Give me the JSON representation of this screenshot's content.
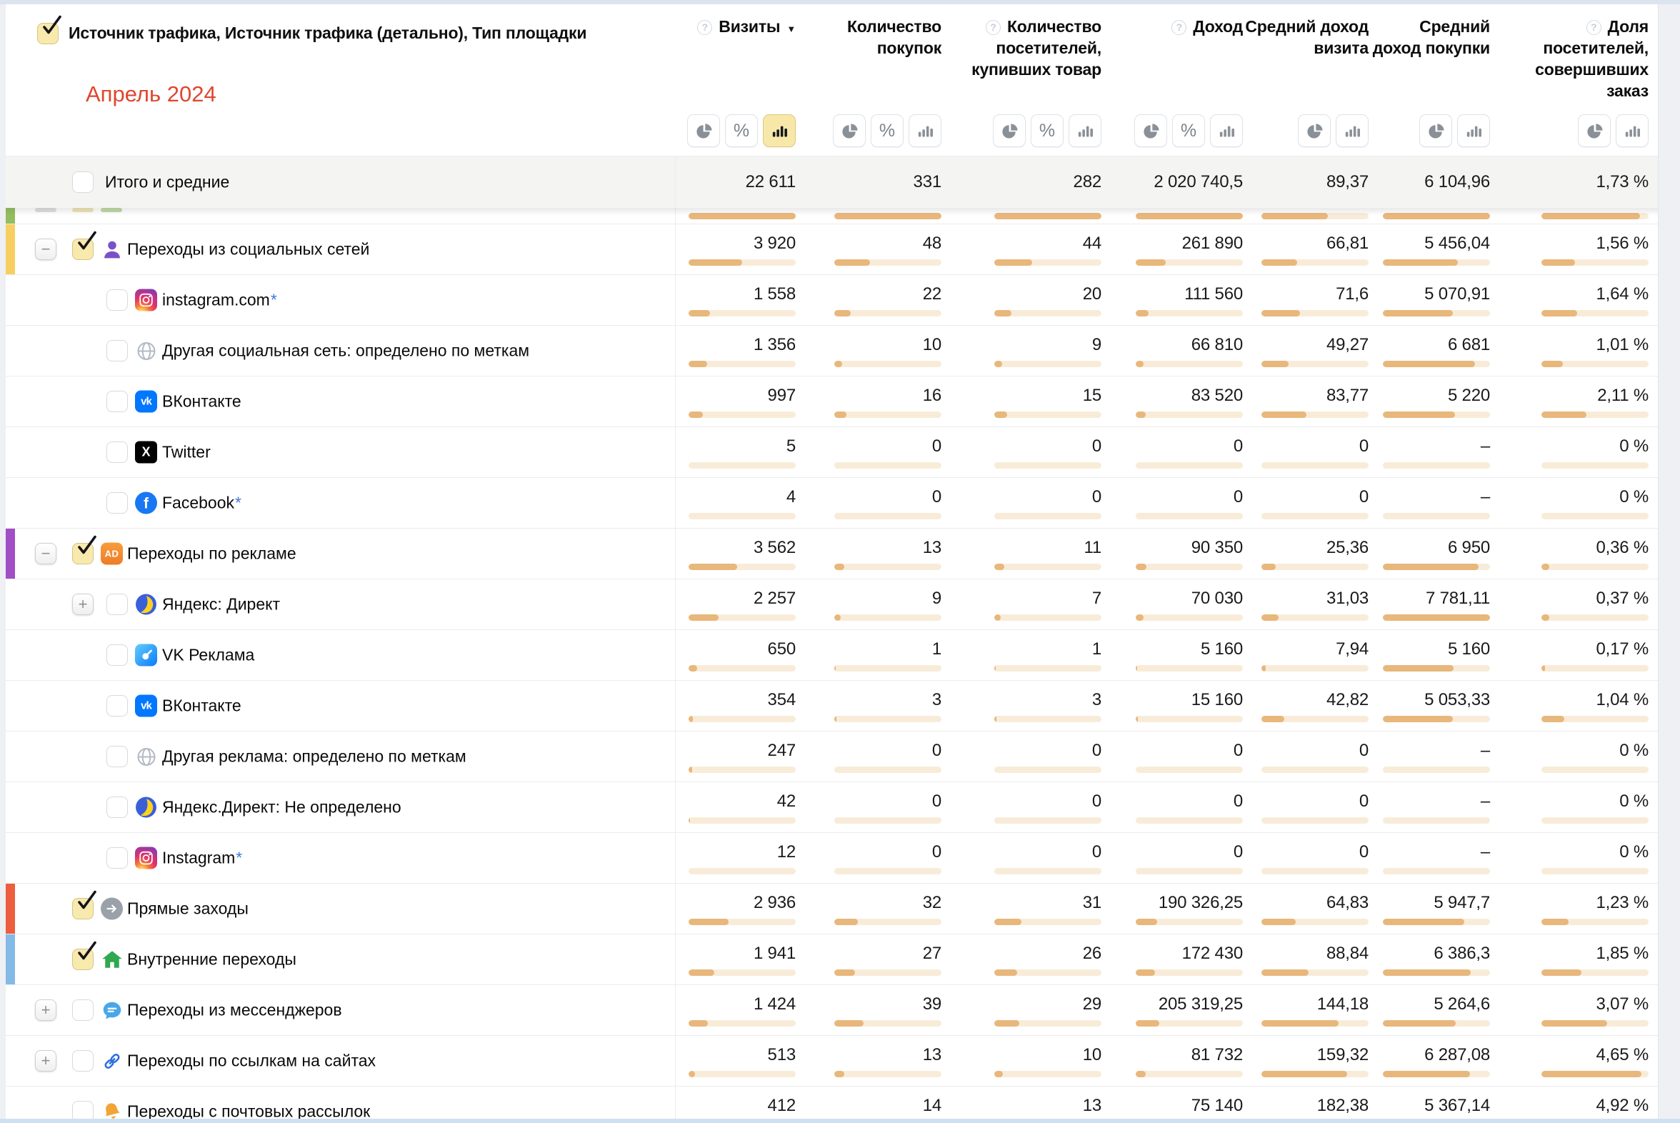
{
  "header": {
    "dimension_title": "Источник трафика, Источник трафика (детально), Тип площадки",
    "period_label": "Апрель 2024",
    "select_all_checked": true,
    "columns": [
      {
        "label": "Визиты",
        "help": true,
        "sort": "desc",
        "toggles": [
          "pie",
          "percent",
          "bars"
        ],
        "active": "bars"
      },
      {
        "label": "Количество покупок",
        "help": false,
        "sort": null,
        "toggles": [
          "pie",
          "percent",
          "bars"
        ],
        "active": null
      },
      {
        "label": "Количество посетителей, купивших товар",
        "help": true,
        "sort": null,
        "toggles": [
          "pie",
          "percent",
          "bars"
        ],
        "active": null
      },
      {
        "label": "Доход",
        "help": true,
        "sort": null,
        "toggles": [
          "pie",
          "percent",
          "bars"
        ],
        "active": null
      },
      {
        "label": "Средний доход визита",
        "help": false,
        "sort": null,
        "toggles": [
          "pie",
          "bars"
        ],
        "active": null
      },
      {
        "label": "Средний доход покупки",
        "help": false,
        "sort": null,
        "toggles": [
          "pie",
          "bars"
        ],
        "active": null
      },
      {
        "label": "Доля посетителей, совершивших заказ",
        "help": true,
        "sort": null,
        "toggles": [
          "pie",
          "bars"
        ],
        "active": null
      }
    ]
  },
  "totals": {
    "label": "Итого и средние",
    "checked": false,
    "values": [
      "22 611",
      "331",
      "282",
      "2 020 740,5",
      "89,37",
      "6 104,96",
      "1,73 %"
    ]
  },
  "clipped_row": {
    "stripe": "#94bd5e",
    "fills": [
      1,
      1,
      1,
      1,
      0.62,
      1,
      0.92
    ]
  },
  "rows": [
    {
      "name": "social-networks",
      "level": 0,
      "stripe": "#f6cf60",
      "expander": "minus",
      "checked": true,
      "icon": "social-person",
      "label": "Переходы из социальных сетей",
      "asterisk": false,
      "cells": [
        {
          "v": "3 920",
          "f": 0.5
        },
        {
          "v": "48",
          "f": 0.33
        },
        {
          "v": "44",
          "f": 0.35
        },
        {
          "v": "261 890",
          "f": 0.28
        },
        {
          "v": "66,81",
          "f": 0.33
        },
        {
          "v": "5 456,04",
          "f": 0.7
        },
        {
          "v": "1,56 %",
          "f": 0.31
        }
      ]
    },
    {
      "name": "instagram-com",
      "level": 1,
      "stripe": null,
      "expander": null,
      "checked": false,
      "icon": "instagram",
      "label": "instagram.com",
      "asterisk": true,
      "cells": [
        {
          "v": "1 558",
          "f": 0.2
        },
        {
          "v": "22",
          "f": 0.15
        },
        {
          "v": "20",
          "f": 0.16
        },
        {
          "v": "111 560",
          "f": 0.12
        },
        {
          "v": "71,6",
          "f": 0.36
        },
        {
          "v": "5 070,91",
          "f": 0.65
        },
        {
          "v": "1,64 %",
          "f": 0.33
        }
      ]
    },
    {
      "name": "other-social",
      "level": 1,
      "stripe": null,
      "expander": null,
      "checked": false,
      "icon": "globe",
      "label": "Другая социальная сеть: определено по меткам",
      "asterisk": false,
      "cells": [
        {
          "v": "1 356",
          "f": 0.17
        },
        {
          "v": "10",
          "f": 0.07
        },
        {
          "v": "9",
          "f": 0.07
        },
        {
          "v": "66 810",
          "f": 0.07
        },
        {
          "v": "49,27",
          "f": 0.25
        },
        {
          "v": "6 681",
          "f": 0.86
        },
        {
          "v": "1,01 %",
          "f": 0.2
        }
      ]
    },
    {
      "name": "vkontakte-social",
      "level": 1,
      "stripe": null,
      "expander": null,
      "checked": false,
      "icon": "vk",
      "label": "ВКонтакте",
      "asterisk": false,
      "cells": [
        {
          "v": "997",
          "f": 0.13
        },
        {
          "v": "16",
          "f": 0.11
        },
        {
          "v": "15",
          "f": 0.12
        },
        {
          "v": "83 520",
          "f": 0.09
        },
        {
          "v": "83,77",
          "f": 0.42
        },
        {
          "v": "5 220",
          "f": 0.67
        },
        {
          "v": "2,11 %",
          "f": 0.42
        }
      ]
    },
    {
      "name": "twitter",
      "level": 1,
      "stripe": null,
      "expander": null,
      "checked": false,
      "icon": "x",
      "label": "Twitter",
      "asterisk": false,
      "cells": [
        {
          "v": "5",
          "f": 0
        },
        {
          "v": "0",
          "f": 0
        },
        {
          "v": "0",
          "f": 0
        },
        {
          "v": "0",
          "f": 0
        },
        {
          "v": "0",
          "f": 0
        },
        {
          "v": "–",
          "f": 0
        },
        {
          "v": "0 %",
          "f": 0
        }
      ]
    },
    {
      "name": "facebook",
      "level": 1,
      "stripe": null,
      "expander": null,
      "checked": false,
      "icon": "facebook",
      "label": "Facebook",
      "asterisk": true,
      "cells": [
        {
          "v": "4",
          "f": 0
        },
        {
          "v": "0",
          "f": 0
        },
        {
          "v": "0",
          "f": 0
        },
        {
          "v": "0",
          "f": 0
        },
        {
          "v": "0",
          "f": 0
        },
        {
          "v": "–",
          "f": 0
        },
        {
          "v": "0 %",
          "f": 0
        }
      ]
    },
    {
      "name": "ad-traffic",
      "level": 0,
      "stripe": "#a14fc5",
      "expander": "minus",
      "checked": true,
      "icon": "ad",
      "label": "Переходы по рекламе",
      "asterisk": false,
      "cells": [
        {
          "v": "3 562",
          "f": 0.45
        },
        {
          "v": "13",
          "f": 0.09
        },
        {
          "v": "11",
          "f": 0.09
        },
        {
          "v": "90 350",
          "f": 0.1
        },
        {
          "v": "25,36",
          "f": 0.13
        },
        {
          "v": "6 950",
          "f": 0.89
        },
        {
          "v": "0,36 %",
          "f": 0.07
        }
      ]
    },
    {
      "name": "yandex-direct",
      "level": 1,
      "stripe": null,
      "expander": "plus",
      "checked": false,
      "icon": "yandex",
      "label": "Яндекс: Директ",
      "asterisk": false,
      "cells": [
        {
          "v": "2 257",
          "f": 0.28
        },
        {
          "v": "9",
          "f": 0.06
        },
        {
          "v": "7",
          "f": 0.06
        },
        {
          "v": "70 030",
          "f": 0.07
        },
        {
          "v": "31,03",
          "f": 0.16
        },
        {
          "v": "7 781,11",
          "f": 1
        },
        {
          "v": "0,37 %",
          "f": 0.07
        }
      ]
    },
    {
      "name": "vk-ads",
      "level": 1,
      "stripe": null,
      "expander": null,
      "checked": false,
      "icon": "vk-ads",
      "label": "VK Реклама",
      "asterisk": false,
      "cells": [
        {
          "v": "650",
          "f": 0.08
        },
        {
          "v": "1",
          "f": 0.01
        },
        {
          "v": "1",
          "f": 0.01
        },
        {
          "v": "5 160",
          "f": 0.01
        },
        {
          "v": "7,94",
          "f": 0.04
        },
        {
          "v": "5 160",
          "f": 0.66
        },
        {
          "v": "0,17 %",
          "f": 0.03
        }
      ]
    },
    {
      "name": "vkontakte-ads",
      "level": 1,
      "stripe": null,
      "expander": null,
      "checked": false,
      "icon": "vk",
      "label": "ВКонтакте",
      "asterisk": false,
      "cells": [
        {
          "v": "354",
          "f": 0.04
        },
        {
          "v": "3",
          "f": 0.02
        },
        {
          "v": "3",
          "f": 0.02
        },
        {
          "v": "15 160",
          "f": 0.02
        },
        {
          "v": "42,82",
          "f": 0.21
        },
        {
          "v": "5 053,33",
          "f": 0.65
        },
        {
          "v": "1,04 %",
          "f": 0.21
        }
      ]
    },
    {
      "name": "other-ads",
      "level": 1,
      "stripe": null,
      "expander": null,
      "checked": false,
      "icon": "globe",
      "label": "Другая реклама: определено по меткам",
      "asterisk": false,
      "cells": [
        {
          "v": "247",
          "f": 0.03
        },
        {
          "v": "0",
          "f": 0
        },
        {
          "v": "0",
          "f": 0
        },
        {
          "v": "0",
          "f": 0
        },
        {
          "v": "0",
          "f": 0
        },
        {
          "v": "–",
          "f": 0
        },
        {
          "v": "0 %",
          "f": 0
        }
      ]
    },
    {
      "name": "yandex-direct-undefined",
      "level": 1,
      "stripe": null,
      "expander": null,
      "checked": false,
      "icon": "yandex",
      "label": "Яндекс.Директ: Не определено",
      "asterisk": false,
      "cells": [
        {
          "v": "42",
          "f": 0.01
        },
        {
          "v": "0",
          "f": 0
        },
        {
          "v": "0",
          "f": 0
        },
        {
          "v": "0",
          "f": 0
        },
        {
          "v": "0",
          "f": 0
        },
        {
          "v": "–",
          "f": 0
        },
        {
          "v": "0 %",
          "f": 0
        }
      ]
    },
    {
      "name": "instagram-ads",
      "level": 1,
      "stripe": null,
      "expander": null,
      "checked": false,
      "icon": "instagram",
      "label": "Instagram",
      "asterisk": true,
      "cells": [
        {
          "v": "12",
          "f": 0
        },
        {
          "v": "0",
          "f": 0
        },
        {
          "v": "0",
          "f": 0
        },
        {
          "v": "0",
          "f": 0
        },
        {
          "v": "0",
          "f": 0
        },
        {
          "v": "–",
          "f": 0
        },
        {
          "v": "0 %",
          "f": 0
        }
      ]
    },
    {
      "name": "direct-visits",
      "level": 0,
      "stripe": "#ec5e3f",
      "expander": null,
      "checked": true,
      "icon": "arrow",
      "label": "Прямые заходы",
      "asterisk": false,
      "cells": [
        {
          "v": "2 936",
          "f": 0.37
        },
        {
          "v": "32",
          "f": 0.22
        },
        {
          "v": "31",
          "f": 0.25
        },
        {
          "v": "190 326,25",
          "f": 0.2
        },
        {
          "v": "64,83",
          "f": 0.32
        },
        {
          "v": "5 947,7",
          "f": 0.76
        },
        {
          "v": "1,23 %",
          "f": 0.25
        }
      ]
    },
    {
      "name": "internal-visits",
      "level": 0,
      "stripe": "#85b9e6",
      "expander": null,
      "checked": true,
      "icon": "house",
      "label": "Внутренние переходы",
      "asterisk": false,
      "cells": [
        {
          "v": "1 941",
          "f": 0.24
        },
        {
          "v": "27",
          "f": 0.19
        },
        {
          "v": "26",
          "f": 0.21
        },
        {
          "v": "172 430",
          "f": 0.18
        },
        {
          "v": "88,84",
          "f": 0.44
        },
        {
          "v": "6 386,3",
          "f": 0.82
        },
        {
          "v": "1,85 %",
          "f": 0.37
        }
      ]
    },
    {
      "name": "messengers",
      "level": 0,
      "stripe": null,
      "expander": "plus",
      "checked": false,
      "icon": "messenger",
      "label": "Переходы из мессенджеров",
      "asterisk": false,
      "cells": [
        {
          "v": "1 424",
          "f": 0.18
        },
        {
          "v": "39",
          "f": 0.27
        },
        {
          "v": "29",
          "f": 0.23
        },
        {
          "v": "205 319,25",
          "f": 0.22
        },
        {
          "v": "144,18",
          "f": 0.72
        },
        {
          "v": "5 264,6",
          "f": 0.68
        },
        {
          "v": "3,07 %",
          "f": 0.61
        }
      ]
    },
    {
      "name": "site-links",
      "level": 0,
      "stripe": null,
      "expander": "plus",
      "checked": false,
      "icon": "link",
      "label": "Переходы по ссылкам на сайтах",
      "asterisk": false,
      "cells": [
        {
          "v": "513",
          "f": 0.06
        },
        {
          "v": "13",
          "f": 0.09
        },
        {
          "v": "10",
          "f": 0.08
        },
        {
          "v": "81 732",
          "f": 0.09
        },
        {
          "v": "159,32",
          "f": 0.8
        },
        {
          "v": "6 287,08",
          "f": 0.81
        },
        {
          "v": "4,65 %",
          "f": 0.93
        }
      ]
    },
    {
      "name": "email-campaigns",
      "level": 0,
      "stripe": null,
      "expander": null,
      "checked": false,
      "icon": "bell",
      "label": "Переходы с почтовых рассылок",
      "asterisk": false,
      "cells": [
        {
          "v": "412",
          "f": 0.05
        },
        {
          "v": "14",
          "f": 0.1
        },
        {
          "v": "13",
          "f": 0.1
        },
        {
          "v": "75 140",
          "f": 0.08
        },
        {
          "v": "182,38",
          "f": 0.91
        },
        {
          "v": "5 367,14",
          "f": 0.69
        },
        {
          "v": "4,92 %",
          "f": 0.98
        }
      ]
    }
  ],
  "colors": {
    "bar_fill": "#e8b77c",
    "bar_track": "#f8ecd9",
    "period": "#e0462f",
    "asterisk": "#3e7bd9",
    "totals_bg": "#f4f4f2",
    "stripe_clipped": "#94bd5e",
    "stripe_social": "#f6cf60",
    "stripe_ads": "#a14fc5",
    "stripe_direct": "#ec5e3f",
    "stripe_internal": "#85b9e6",
    "toggle_active_bg": "#f7e8a9"
  }
}
